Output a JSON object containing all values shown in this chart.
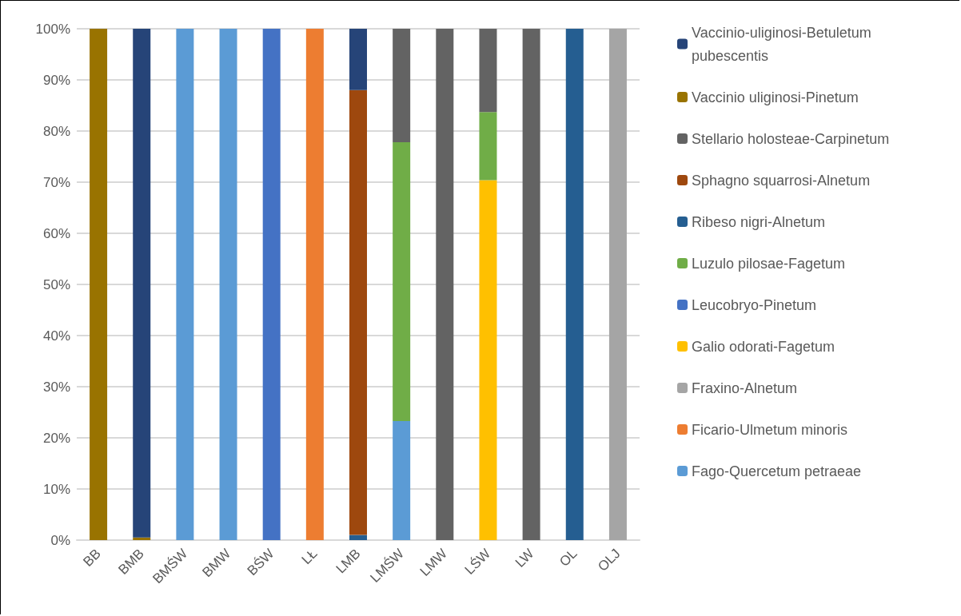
{
  "chart_data": {
    "type": "bar",
    "stacked": true,
    "categories": [
      "BB",
      "BMB",
      "BMŚW",
      "BMW",
      "BŚW",
      "LŁ",
      "LMB",
      "LMŚW",
      "LMW",
      "LŚW",
      "LW",
      "OL",
      "OLJ"
    ],
    "series": [
      {
        "name": "Fago-Quercetum petraeae",
        "color": "#5b9bd5",
        "values": [
          0,
          0,
          100,
          100,
          0,
          0,
          0,
          23.3,
          0,
          0,
          0,
          0,
          0
        ]
      },
      {
        "name": "Ficario-Ulmetum minoris",
        "color": "#ed7d31",
        "values": [
          0,
          0,
          0,
          0,
          0,
          100,
          0,
          0,
          0,
          0,
          0,
          0,
          0
        ]
      },
      {
        "name": "Fraxino-Alnetum",
        "color": "#a5a5a5",
        "values": [
          0,
          0,
          0,
          0,
          0,
          0,
          0,
          0,
          0,
          0,
          0,
          0,
          100
        ]
      },
      {
        "name": "Galio odorati-Fagetum",
        "color": "#ffc000",
        "values": [
          0,
          0,
          0,
          0,
          0,
          0,
          0,
          0,
          0,
          70.4,
          0,
          0,
          0
        ]
      },
      {
        "name": "Leucobryo-Pinetum",
        "color": "#4472c4",
        "values": [
          0,
          0,
          0,
          0,
          100,
          0,
          0,
          0,
          0,
          0,
          0,
          0,
          0
        ]
      },
      {
        "name": "Luzulo pilosae-Fagetum",
        "color": "#70ad47",
        "values": [
          0,
          0,
          0,
          0,
          0,
          0,
          0,
          54.5,
          0,
          13.3,
          0,
          0,
          0
        ]
      },
      {
        "name": "Ribeso nigri-Alnetum",
        "color": "#255e91",
        "values": [
          0,
          0,
          0,
          0,
          0,
          0,
          1,
          0,
          0,
          0,
          0,
          100,
          0
        ]
      },
      {
        "name": "Sphagno squarrosi-Alnetum",
        "color": "#9e480e",
        "values": [
          0,
          0,
          0,
          0,
          0,
          0,
          87,
          0,
          0,
          0,
          0,
          0,
          0
        ]
      },
      {
        "name": "Stellario holosteae-Carpinetum",
        "color": "#636363",
        "values": [
          0,
          0,
          0,
          0,
          0,
          0,
          0,
          22.2,
          100,
          16.3,
          100,
          0,
          0
        ]
      },
      {
        "name": "Vaccinio uliginosi-Pinetum",
        "color": "#997300",
        "values": [
          100,
          0.5,
          0,
          0,
          0,
          0,
          0,
          0,
          0,
          0,
          0,
          0,
          0
        ]
      },
      {
        "name": "Vaccinio-uliginosi-Betuletum pubescentis",
        "color": "#264478",
        "values": [
          0,
          99.5,
          0,
          0,
          0,
          0,
          12,
          0,
          0,
          0,
          0,
          0,
          0
        ]
      }
    ],
    "ylim": [
      0,
      100
    ],
    "yticks": [
      {
        "value": 0,
        "label": "0%"
      },
      {
        "value": 10,
        "label": "10%"
      },
      {
        "value": 20,
        "label": "20%"
      },
      {
        "value": 30,
        "label": "30%"
      },
      {
        "value": 40,
        "label": "40%"
      },
      {
        "value": 50,
        "label": "50%"
      },
      {
        "value": 60,
        "label": "60%"
      },
      {
        "value": 70,
        "label": "70%"
      },
      {
        "value": 80,
        "label": "80%"
      },
      {
        "value": 90,
        "label": "90%"
      },
      {
        "value": 100,
        "label": "100%"
      }
    ],
    "grid": "y",
    "legend": "right"
  }
}
